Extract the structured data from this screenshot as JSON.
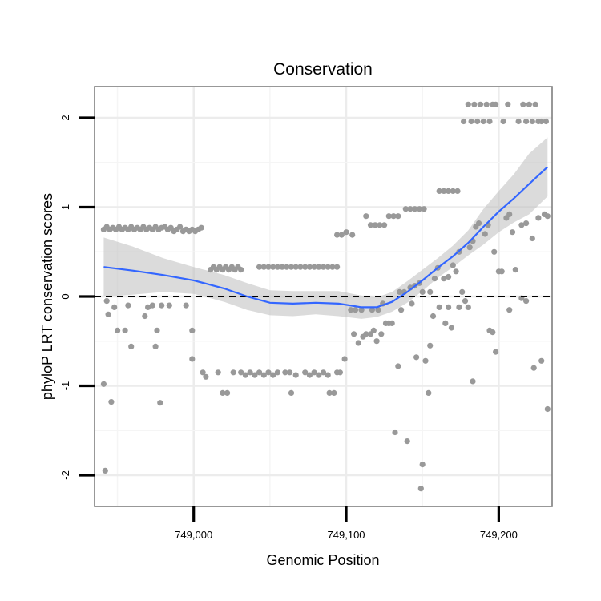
{
  "chart_data": {
    "type": "scatter",
    "title": "Conservation",
    "xlabel": "Genomic Position",
    "ylabel": "phyloP LRT conservation scores",
    "xlim": [
      748935,
      749235
    ],
    "ylim": [
      -2.35,
      2.35
    ],
    "x_ticks": [
      749000,
      749100,
      749200
    ],
    "x_tick_labels": [
      "749,000",
      "749,100",
      "749,200"
    ],
    "y_ticks": [
      -2,
      -1,
      0,
      1,
      2
    ],
    "y_tick_labels": [
      "-2",
      "-1",
      "0",
      "1",
      "2"
    ],
    "grid": true,
    "reference_line": {
      "y": 0,
      "style": "dashed",
      "color": "#000000"
    },
    "colors": {
      "points": "#999999",
      "smooth": "#3366FF",
      "ribbon": "#BDBDBD",
      "frame": "#7f7f7f"
    },
    "series": [
      {
        "type": "points",
        "points": [
          [
            748941,
            0.75
          ],
          [
            748943,
            0.78
          ],
          [
            748945,
            0.75
          ],
          [
            748947,
            0.77
          ],
          [
            748949,
            0.75
          ],
          [
            748951,
            0.78
          ],
          [
            748953,
            0.75
          ],
          [
            748955,
            0.77
          ],
          [
            748957,
            0.75
          ],
          [
            748959,
            0.78
          ],
          [
            748961,
            0.75
          ],
          [
            748963,
            0.77
          ],
          [
            748965,
            0.75
          ],
          [
            748967,
            0.78
          ],
          [
            748969,
            0.75
          ],
          [
            748971,
            0.77
          ],
          [
            748973,
            0.75
          ],
          [
            748975,
            0.78
          ],
          [
            748977,
            0.75
          ],
          [
            748979,
            0.77
          ],
          [
            748981,
            0.78
          ],
          [
            748983,
            0.75
          ],
          [
            748985,
            0.77
          ],
          [
            748987,
            0.73
          ],
          [
            748989,
            0.75
          ],
          [
            748991,
            0.78
          ],
          [
            748993,
            0.73
          ],
          [
            748995,
            0.75
          ],
          [
            748997,
            0.73
          ],
          [
            748999,
            0.75
          ],
          [
            749001,
            0.73
          ],
          [
            749003,
            0.75
          ],
          [
            749005,
            0.77
          ],
          [
            749011,
            0.3
          ],
          [
            749013,
            0.33
          ],
          [
            749015,
            0.3
          ],
          [
            749017,
            0.33
          ],
          [
            749019,
            0.3
          ],
          [
            749021,
            0.33
          ],
          [
            749023,
            0.3
          ],
          [
            749025,
            0.33
          ],
          [
            749027,
            0.3
          ],
          [
            749029,
            0.33
          ],
          [
            749031,
            0.3
          ],
          [
            749043,
            0.33
          ],
          [
            749046,
            0.33
          ],
          [
            749049,
            0.33
          ],
          [
            749052,
            0.33
          ],
          [
            749055,
            0.33
          ],
          [
            749058,
            0.33
          ],
          [
            749061,
            0.33
          ],
          [
            749064,
            0.33
          ],
          [
            749067,
            0.33
          ],
          [
            749070,
            0.33
          ],
          [
            749073,
            0.33
          ],
          [
            749076,
            0.33
          ],
          [
            749079,
            0.33
          ],
          [
            749082,
            0.33
          ],
          [
            749085,
            0.33
          ],
          [
            749088,
            0.33
          ],
          [
            749091,
            0.33
          ],
          [
            749094,
            0.33
          ],
          [
            749094,
            0.69
          ],
          [
            749097,
            0.69
          ],
          [
            749100,
            0.72
          ],
          [
            749104,
            0.69
          ],
          [
            749113,
            0.9
          ],
          [
            749116,
            0.8
          ],
          [
            749119,
            0.8
          ],
          [
            749122,
            0.8
          ],
          [
            749125,
            0.8
          ],
          [
            749128,
            0.9
          ],
          [
            749131,
            0.9
          ],
          [
            749134,
            0.9
          ],
          [
            749139,
            0.98
          ],
          [
            749142,
            0.98
          ],
          [
            749145,
            0.98
          ],
          [
            749148,
            0.98
          ],
          [
            749151,
            0.98
          ],
          [
            749161,
            1.18
          ],
          [
            749164,
            1.18
          ],
          [
            749167,
            1.18
          ],
          [
            749170,
            1.18
          ],
          [
            749173,
            1.18
          ],
          [
            749177,
            1.96
          ],
          [
            749180,
            2.15
          ],
          [
            749182,
            1.96
          ],
          [
            749184,
            2.15
          ],
          [
            749186,
            1.96
          ],
          [
            749188,
            2.15
          ],
          [
            749190,
            1.96
          ],
          [
            749192,
            2.15
          ],
          [
            749194,
            1.96
          ],
          [
            749196,
            2.15
          ],
          [
            749198,
            2.15
          ],
          [
            749203,
            1.96
          ],
          [
            749206,
            2.15
          ],
          [
            749213,
            1.96
          ],
          [
            749216,
            2.15
          ],
          [
            749218,
            1.96
          ],
          [
            749220,
            2.15
          ],
          [
            749222,
            1.96
          ],
          [
            749224,
            2.15
          ],
          [
            749226,
            1.96
          ],
          [
            749228,
            1.96
          ],
          [
            749231,
            1.96
          ],
          [
            748941,
            -0.98
          ],
          [
            748942,
            -1.95
          ],
          [
            748943,
            -0.05
          ],
          [
            748944,
            -0.2
          ],
          [
            748946,
            -1.18
          ],
          [
            748948,
            -0.12
          ],
          [
            748950,
            -0.38
          ],
          [
            748955,
            -0.38
          ],
          [
            748957,
            -0.1
          ],
          [
            748959,
            -0.56
          ],
          [
            748968,
            -0.22
          ],
          [
            748970,
            -0.12
          ],
          [
            748973,
            -0.1
          ],
          [
            748975,
            -0.56
          ],
          [
            748976,
            -0.38
          ],
          [
            748978,
            -1.19
          ],
          [
            748979,
            -0.1
          ],
          [
            748984,
            -0.1
          ],
          [
            748995,
            -0.1
          ],
          [
            748999,
            -0.7
          ],
          [
            748999,
            -0.38
          ],
          [
            749006,
            -0.85
          ],
          [
            749008,
            -0.9
          ],
          [
            749016,
            -0.85
          ],
          [
            749019,
            -1.08
          ],
          [
            749022,
            -1.08
          ],
          [
            749026,
            -0.85
          ],
          [
            749031,
            -0.85
          ],
          [
            749034,
            -0.88
          ],
          [
            749037,
            -0.85
          ],
          [
            749040,
            -0.88
          ],
          [
            749043,
            -0.85
          ],
          [
            749046,
            -0.88
          ],
          [
            749049,
            -0.85
          ],
          [
            749052,
            -0.88
          ],
          [
            749055,
            -0.85
          ],
          [
            749060,
            -0.85
          ],
          [
            749063,
            -0.85
          ],
          [
            749064,
            -1.08
          ],
          [
            749067,
            -0.88
          ],
          [
            749073,
            -0.85
          ],
          [
            749076,
            -0.88
          ],
          [
            749079,
            -0.85
          ],
          [
            749082,
            -0.88
          ],
          [
            749085,
            -0.85
          ],
          [
            749088,
            -0.88
          ],
          [
            749089,
            -1.08
          ],
          [
            749092,
            -1.08
          ],
          [
            749094,
            -0.85
          ],
          [
            749096,
            -0.85
          ],
          [
            749099,
            -0.7
          ],
          [
            749103,
            -0.15
          ],
          [
            749105,
            -0.42
          ],
          [
            749106,
            -0.15
          ],
          [
            749108,
            -0.52
          ],
          [
            749110,
            -0.15
          ],
          [
            749111,
            -0.45
          ],
          [
            749113,
            -0.42
          ],
          [
            749116,
            -0.42
          ],
          [
            749117,
            -0.15
          ],
          [
            749118,
            -0.38
          ],
          [
            749120,
            -0.5
          ],
          [
            749121,
            -0.15
          ],
          [
            749123,
            -0.42
          ],
          [
            749124,
            -0.08
          ],
          [
            749126,
            -0.3
          ],
          [
            749128,
            -0.3
          ],
          [
            749130,
            -0.3
          ],
          [
            749132,
            -1.52
          ],
          [
            749134,
            -0.78
          ],
          [
            749136,
            -0.15
          ],
          [
            749140,
            -1.62
          ],
          [
            749143,
            -0.08
          ],
          [
            749146,
            -0.68
          ],
          [
            749149,
            -2.15
          ],
          [
            749150,
            -1.88
          ],
          [
            749152,
            -0.72
          ],
          [
            749154,
            -1.08
          ],
          [
            749155,
            -0.55
          ],
          [
            749157,
            -0.22
          ],
          [
            749161,
            -0.12
          ],
          [
            749165,
            -0.3
          ],
          [
            749167,
            -0.12
          ],
          [
            749169,
            -0.35
          ],
          [
            749174,
            -0.12
          ],
          [
            749178,
            -0.05
          ],
          [
            749180,
            -0.12
          ],
          [
            749183,
            -0.95
          ],
          [
            749194,
            -0.38
          ],
          [
            749196,
            -0.4
          ],
          [
            749198,
            -0.62
          ],
          [
            749207,
            -0.15
          ],
          [
            749215,
            -0.02
          ],
          [
            749218,
            -0.05
          ],
          [
            749223,
            -0.8
          ],
          [
            749228,
            -0.72
          ],
          [
            749232,
            -1.26
          ],
          [
            749135,
            0.05
          ],
          [
            749138,
            0.05
          ],
          [
            749142,
            0.1
          ],
          [
            749145,
            0.12
          ],
          [
            749148,
            0.15
          ],
          [
            749150,
            0.05
          ],
          [
            749155,
            0.05
          ],
          [
            749158,
            0.2
          ],
          [
            749160,
            0.32
          ],
          [
            749164,
            0.2
          ],
          [
            749167,
            0.22
          ],
          [
            749170,
            0.35
          ],
          [
            749172,
            0.28
          ],
          [
            749174,
            0.5
          ],
          [
            749176,
            0.05
          ],
          [
            749181,
            0.55
          ],
          [
            749183,
            0.62
          ],
          [
            749185,
            0.78
          ],
          [
            749187,
            0.82
          ],
          [
            749191,
            0.7
          ],
          [
            749193,
            0.8
          ],
          [
            749197,
            0.5
          ],
          [
            749200,
            0.28
          ],
          [
            749202,
            0.28
          ],
          [
            749205,
            0.88
          ],
          [
            749207,
            0.92
          ],
          [
            749209,
            0.72
          ],
          [
            749211,
            0.3
          ],
          [
            749215,
            0.8
          ],
          [
            749218,
            0.82
          ],
          [
            749222,
            0.65
          ],
          [
            749226,
            0.88
          ],
          [
            749230,
            0.92
          ],
          [
            749232,
            0.9
          ]
        ]
      },
      {
        "type": "smooth",
        "points": [
          [
            748941,
            0.33
          ],
          [
            748960,
            0.29
          ],
          [
            748980,
            0.24
          ],
          [
            749000,
            0.18
          ],
          [
            749020,
            0.09
          ],
          [
            749035,
            0.0
          ],
          [
            749050,
            -0.07
          ],
          [
            749065,
            -0.08
          ],
          [
            749080,
            -0.07
          ],
          [
            749095,
            -0.08
          ],
          [
            749110,
            -0.12
          ],
          [
            749120,
            -0.12
          ],
          [
            749130,
            -0.06
          ],
          [
            749140,
            0.05
          ],
          [
            749150,
            0.18
          ],
          [
            749160,
            0.32
          ],
          [
            749170,
            0.45
          ],
          [
            749180,
            0.6
          ],
          [
            749190,
            0.78
          ],
          [
            749200,
            0.95
          ],
          [
            749210,
            1.1
          ],
          [
            749220,
            1.26
          ],
          [
            749232,
            1.45
          ]
        ],
        "lower": [
          0.0,
          0.02,
          0.05,
          0.03,
          -0.06,
          -0.15,
          -0.21,
          -0.22,
          -0.2,
          -0.22,
          -0.25,
          -0.23,
          -0.17,
          -0.07,
          0.06,
          0.21,
          0.33,
          0.46,
          0.58,
          0.72,
          0.83,
          0.92,
          1.12
        ],
        "upper": [
          0.66,
          0.56,
          0.43,
          0.33,
          0.24,
          0.15,
          0.07,
          0.06,
          0.06,
          0.06,
          0.01,
          -0.01,
          0.05,
          0.17,
          0.3,
          0.43,
          0.57,
          0.74,
          0.98,
          1.18,
          1.37,
          1.6,
          1.78
        ]
      }
    ]
  }
}
